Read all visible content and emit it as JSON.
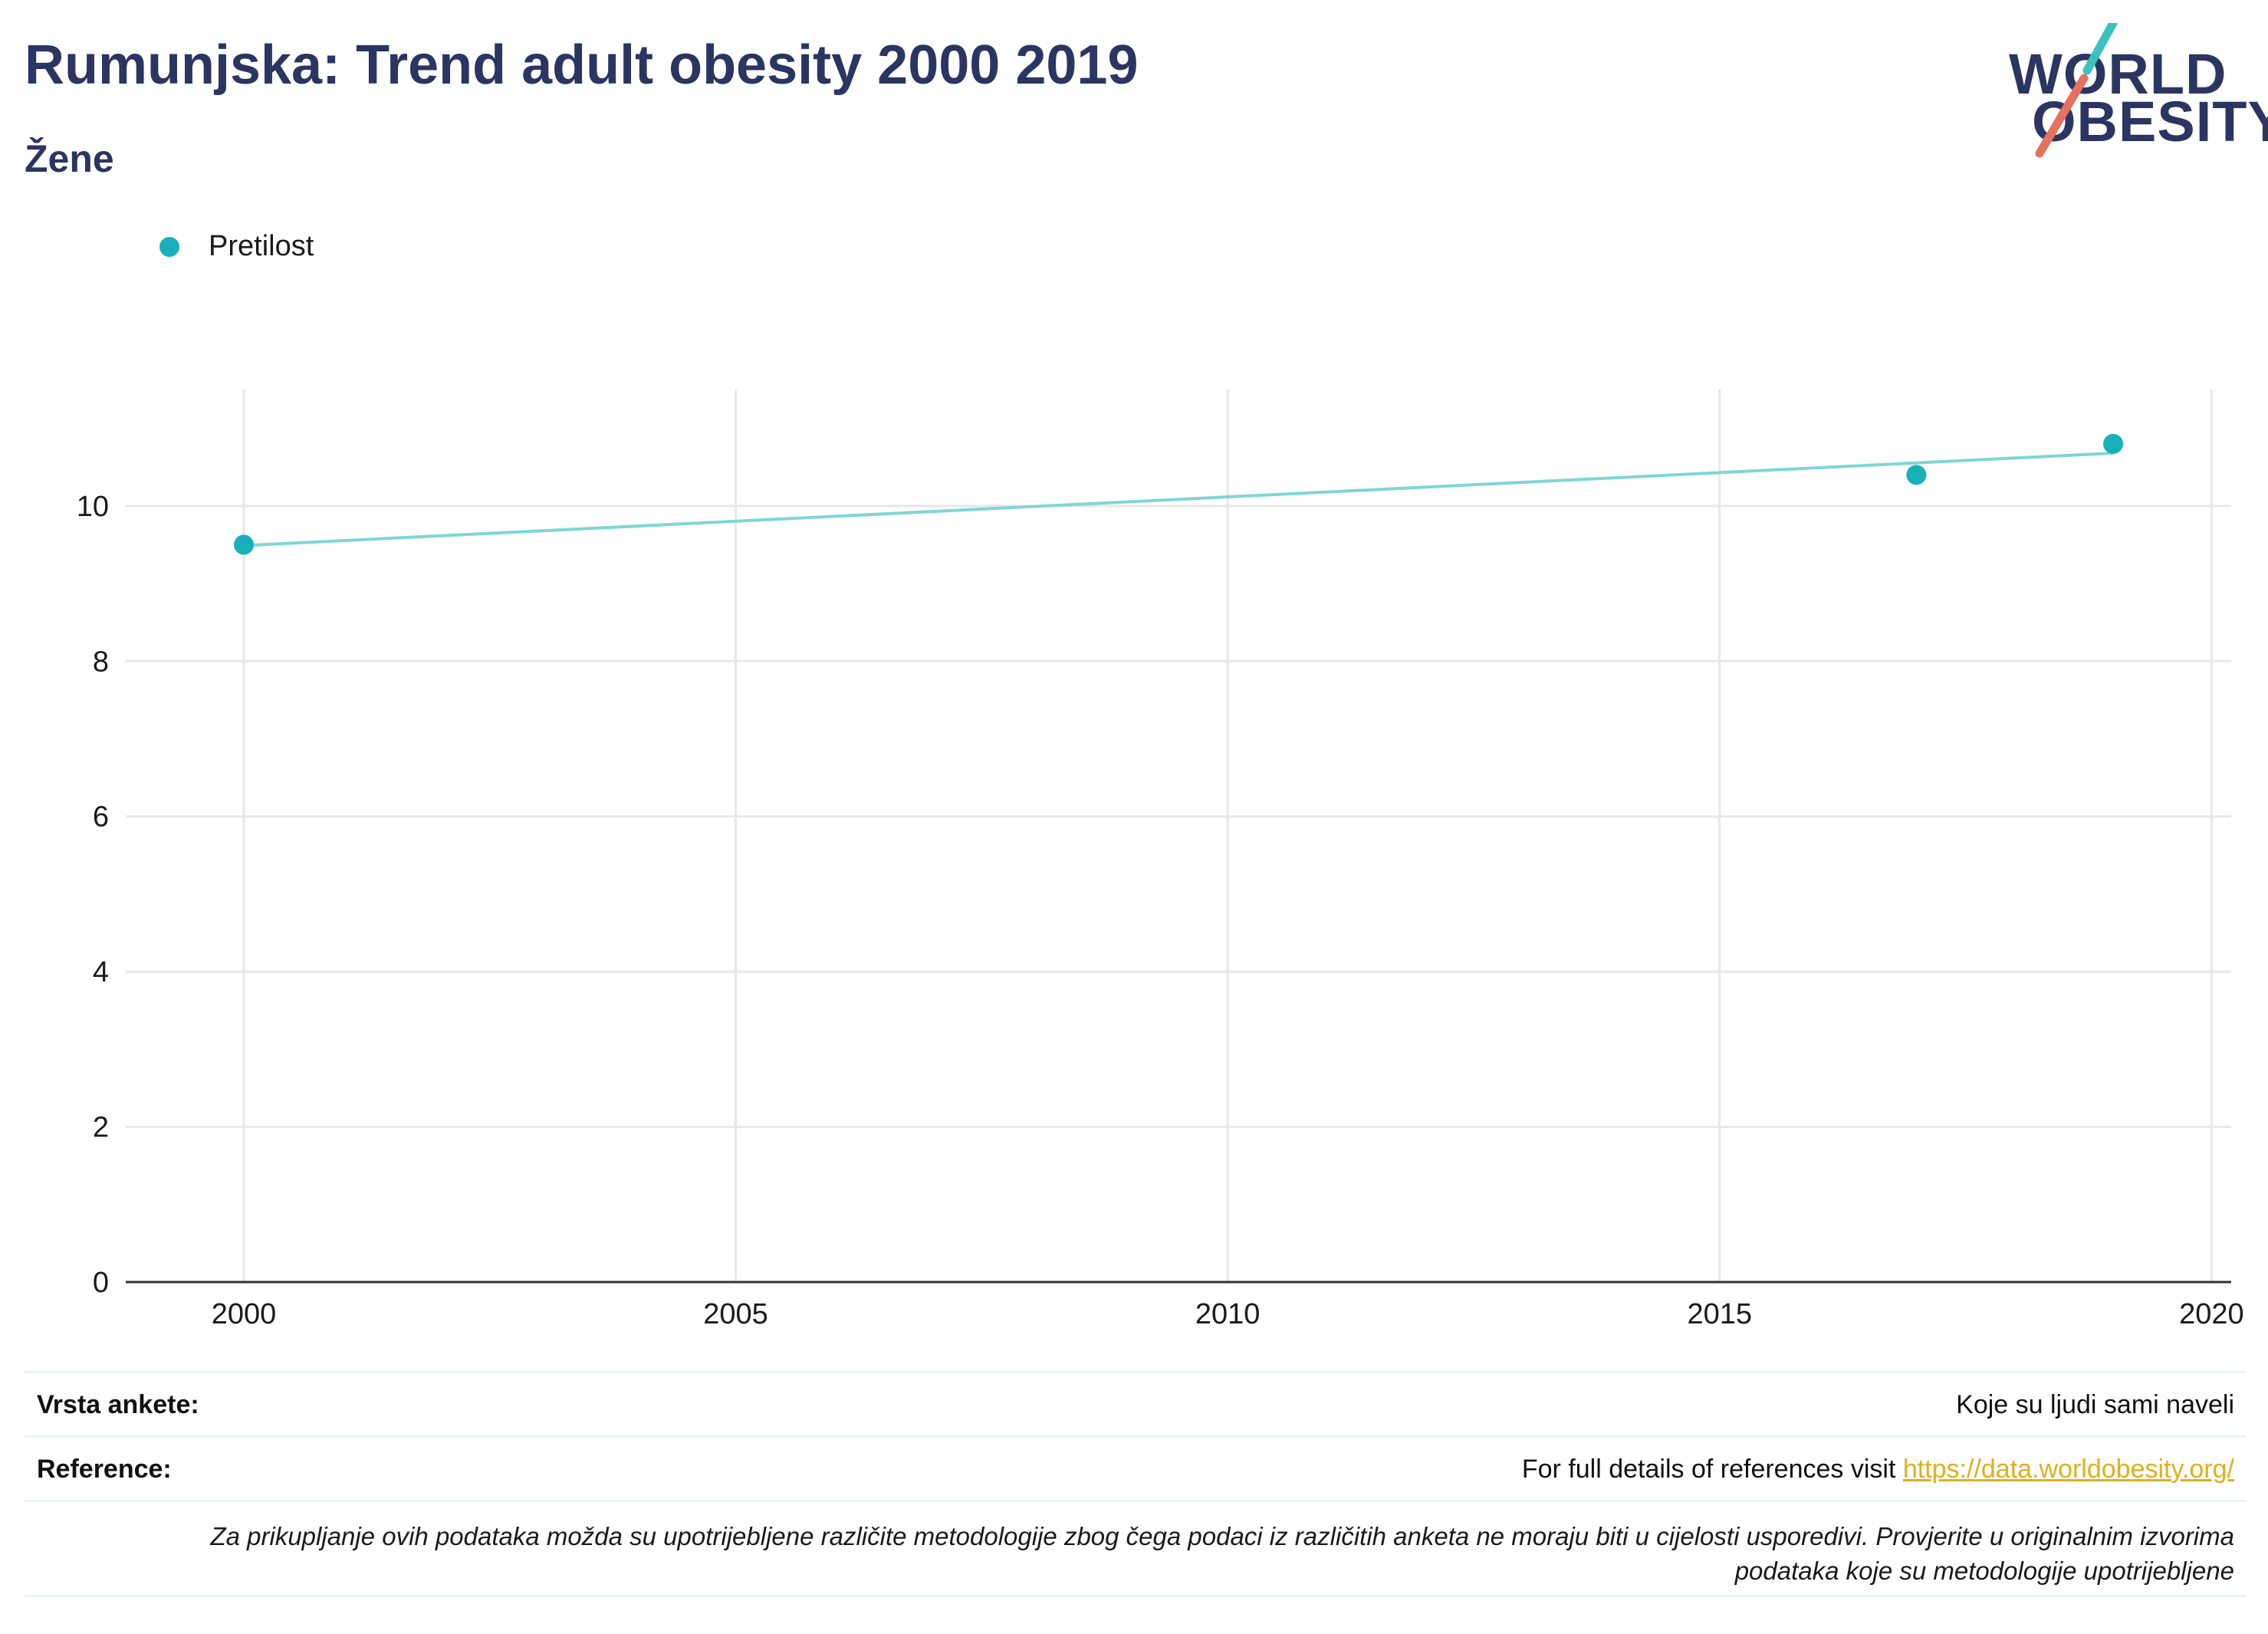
{
  "header": {
    "title": "Rumunjska: Trend adult obesity 2000 2019",
    "subtitle": "Žene",
    "logo_text": [
      "WORLD",
      "OBESITY"
    ]
  },
  "legend": {
    "label": "Pretilost"
  },
  "colors": {
    "series": "#17b0b8",
    "trendline": "#7fd6d6",
    "title": "#2b3562",
    "logo_teal": "#3cc0c0",
    "logo_coral": "#e8705f",
    "link": "#e0b01c",
    "grid": "#e8e8e8",
    "divider": "#edf2f2"
  },
  "chart_data": {
    "type": "scatter",
    "series": [
      {
        "name": "Pretilost",
        "x": [
          2000,
          2017,
          2019
        ],
        "y": [
          9.5,
          10.4,
          10.8
        ]
      }
    ],
    "trendline": {
      "x": [
        2000,
        2019
      ],
      "y": [
        9.49,
        10.68
      ]
    },
    "xlim": [
      1998.8,
      2020.2
    ],
    "ylim": [
      0,
      11.5
    ],
    "xticks": [
      2000,
      2005,
      2010,
      2015,
      2020
    ],
    "yticks": [
      0,
      2,
      4,
      6,
      8,
      10
    ],
    "grid": true,
    "legend_position": "top-left",
    "title": "Rumunjska: Trend adult obesity 2000 2019",
    "subtitle": "Žene"
  },
  "info_table": {
    "survey_label": "Vrsta ankete:",
    "survey_value": "Koje su ljudi sami naveli",
    "reference_label": "Reference:",
    "reference_text": "For full details of references visit ",
    "reference_link": "https://data.worldobesity.org/",
    "note_line1": "Za prikupljanje ovih podataka možda su upotrijebljene različite metodologije zbog čega podaci iz različitih anketa ne moraju biti u cijelosti usporedivi. Provjerite u originalnim izvorima",
    "note_line2": "podataka koje su metodologije upotrijebljene"
  }
}
